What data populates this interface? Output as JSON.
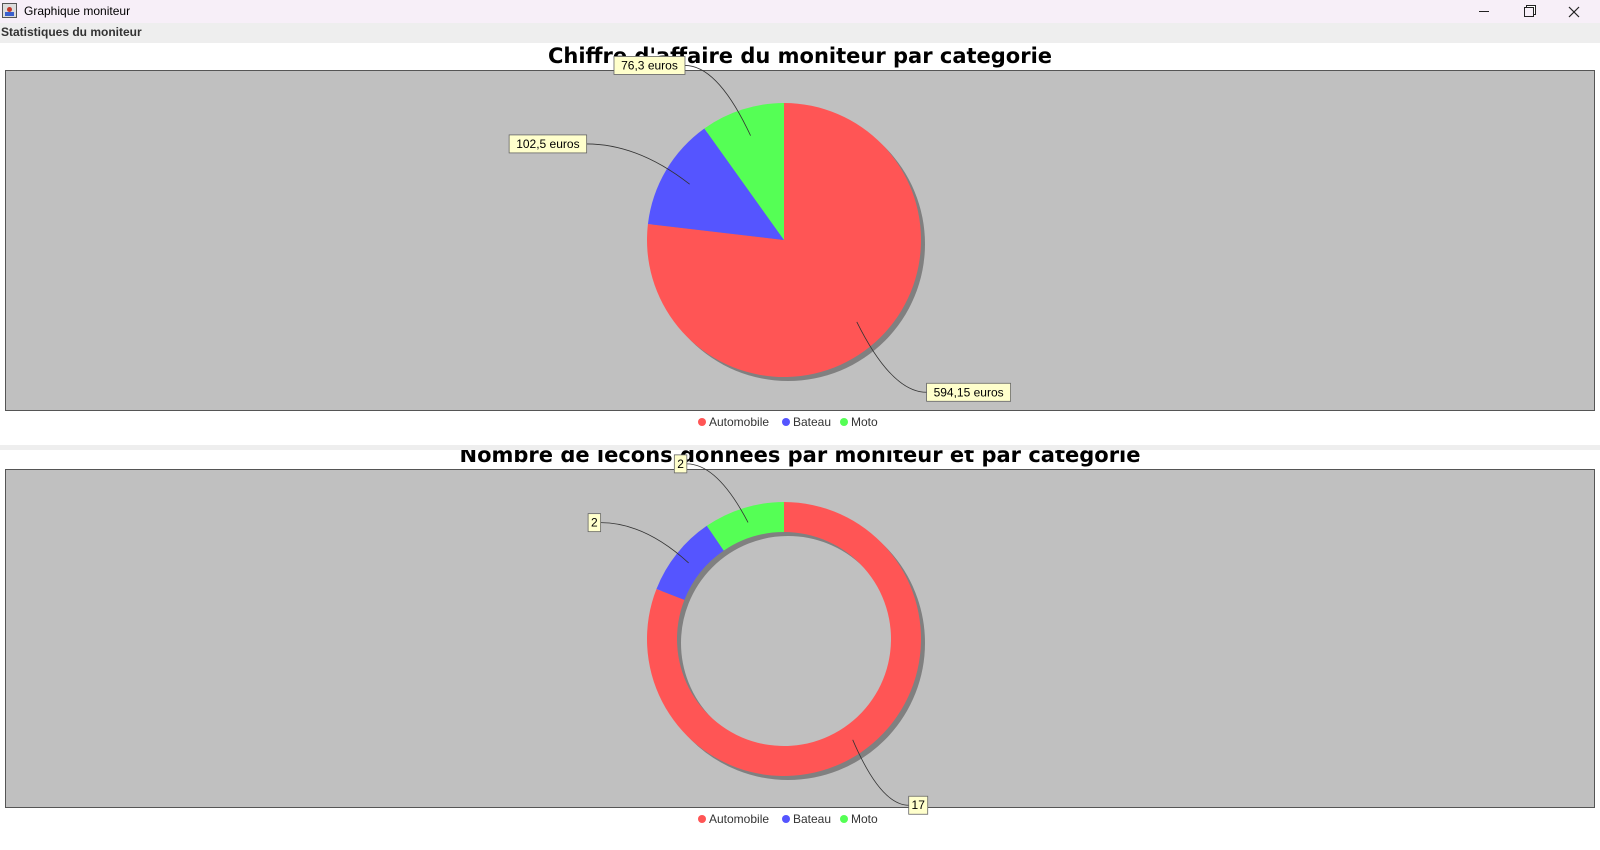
{
  "window": {
    "title": "Graphique moniteur",
    "subtitle": "Statistiques du moniteur",
    "icons": {
      "app": "app-icon",
      "minimize": "minimize-icon",
      "maximize": "maximize-icon",
      "close": "close-icon"
    }
  },
  "colors": {
    "plot_background": "#c0c0c0",
    "label_background": "#ffffcc",
    "shadow": "#808080",
    "series": {
      "Automobile": "#ff5555",
      "Bateau": "#5555ff",
      "Moto": "#55ff55"
    }
  },
  "chart_data": [
    {
      "type": "pie",
      "title": "Chiffre d'affaire du moniteur par categorie",
      "categories": [
        "Automobile",
        "Bateau",
        "Moto"
      ],
      "values": [
        594.15,
        102.5,
        76.3
      ],
      "labels": [
        "594,15 euros",
        "102,5 euros",
        "76,3 euros"
      ],
      "legend": [
        "Automobile",
        "Bateau",
        "Moto"
      ],
      "legend_position": "bottom"
    },
    {
      "type": "donut",
      "title": "Nombre de lecons données par moniteur et par categorie",
      "categories": [
        "Automobile",
        "Bateau",
        "Moto"
      ],
      "values": [
        17,
        2,
        2
      ],
      "labels": [
        "17",
        "2",
        "2"
      ],
      "legend": [
        "Automobile",
        "Bateau",
        "Moto"
      ],
      "legend_position": "bottom"
    }
  ]
}
